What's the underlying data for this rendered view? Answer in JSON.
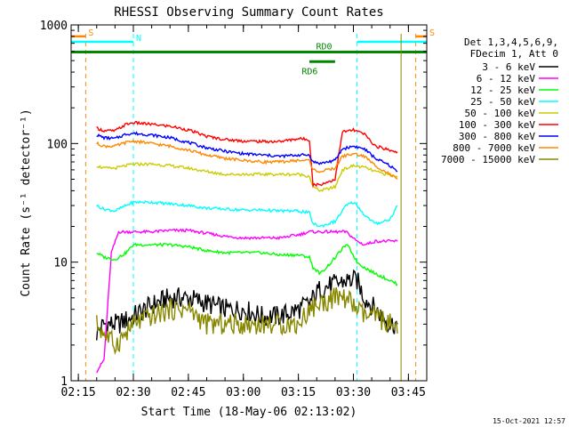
{
  "chart_data": {
    "type": "line",
    "title": "RHESSI Observing Summary Count Rates",
    "xlabel": "Start Time (18-May-06 02:13:02)",
    "ylabel": "Count Rate (s⁻¹ detector⁻¹)",
    "yscale": "log",
    "xlim": [
      "02:13:02",
      "03:50:00"
    ],
    "ylim": [
      1,
      1000
    ],
    "x_ticks": [
      "02:15",
      "02:30",
      "02:45",
      "03:00",
      "03:15",
      "03:30",
      "03:45"
    ],
    "y_ticks": [
      "1",
      "10",
      "100",
      "1000"
    ],
    "footer": "15-Oct-2021 12:57",
    "legend_header": [
      "Det 1,3,4,5,6,9,",
      "FDecim 1, Att 0"
    ],
    "legend_position": "right",
    "series": [
      {
        "name": "3 - 6 keV",
        "color": "#000000",
        "points": [
          [
            "02:20",
            2.5
          ],
          [
            "02:22",
            3
          ],
          [
            "02:26",
            3
          ],
          [
            "02:30",
            3.5
          ],
          [
            "02:36",
            4.5
          ],
          [
            "02:40",
            5
          ],
          [
            "02:45",
            5
          ],
          [
            "02:50",
            4.5
          ],
          [
            "02:55",
            4
          ],
          [
            "03:00",
            4
          ],
          [
            "03:05",
            3.5
          ],
          [
            "03:10",
            3.5
          ],
          [
            "03:15",
            4
          ],
          [
            "03:18",
            4.5
          ],
          [
            "03:21",
            6
          ],
          [
            "03:25",
            6.5
          ],
          [
            "03:28",
            7
          ],
          [
            "03:31",
            7
          ],
          [
            "03:33",
            5
          ],
          [
            "03:36",
            4
          ],
          [
            "03:40",
            3
          ],
          [
            "03:42",
            3
          ]
        ]
      },
      {
        "name": "6 - 12 keV",
        "color": "#ff00ff",
        "points": [
          [
            "02:20",
            1.2
          ],
          [
            "02:22",
            1.5
          ],
          [
            "02:24",
            12
          ],
          [
            "02:26",
            18
          ],
          [
            "02:30",
            18
          ],
          [
            "02:35",
            18
          ],
          [
            "02:40",
            18.5
          ],
          [
            "02:45",
            18.5
          ],
          [
            "02:50",
            17.5
          ],
          [
            "02:55",
            16.5
          ],
          [
            "03:00",
            16
          ],
          [
            "03:05",
            16
          ],
          [
            "03:10",
            16
          ],
          [
            "03:15",
            17
          ],
          [
            "03:18",
            18
          ],
          [
            "03:21",
            18
          ],
          [
            "03:25",
            18
          ],
          [
            "03:28",
            18
          ],
          [
            "03:31",
            15
          ],
          [
            "03:33",
            14
          ],
          [
            "03:36",
            15
          ],
          [
            "03:40",
            15
          ],
          [
            "03:42",
            15
          ]
        ]
      },
      {
        "name": "12 - 25 keV",
        "color": "#00ff00",
        "points": [
          [
            "02:20",
            12
          ],
          [
            "02:22",
            11
          ],
          [
            "02:25",
            10.5
          ],
          [
            "02:28",
            12
          ],
          [
            "02:30",
            14
          ],
          [
            "02:35",
            14
          ],
          [
            "02:40",
            14
          ],
          [
            "02:45",
            13.5
          ],
          [
            "02:50",
            12.5
          ],
          [
            "02:55",
            12
          ],
          [
            "03:00",
            12
          ],
          [
            "03:05",
            12
          ],
          [
            "03:10",
            11.5
          ],
          [
            "03:15",
            11.5
          ],
          [
            "03:18",
            11
          ],
          [
            "03:19",
            9
          ],
          [
            "03:21",
            8
          ],
          [
            "03:24",
            10
          ],
          [
            "03:27",
            13
          ],
          [
            "03:28",
            14
          ],
          [
            "03:29",
            13
          ],
          [
            "03:31",
            10
          ],
          [
            "03:33",
            9
          ],
          [
            "03:36",
            8
          ],
          [
            "03:40",
            7
          ],
          [
            "03:42",
            6.5
          ]
        ]
      },
      {
        "name": "25 - 50 keV",
        "color": "#00ffff",
        "points": [
          [
            "02:20",
            30
          ],
          [
            "02:22",
            28
          ],
          [
            "02:25",
            27
          ],
          [
            "02:28",
            30
          ],
          [
            "02:30",
            32
          ],
          [
            "02:35",
            32
          ],
          [
            "02:40",
            31
          ],
          [
            "02:45",
            30
          ],
          [
            "02:50",
            28.5
          ],
          [
            "02:55",
            28
          ],
          [
            "03:00",
            27.5
          ],
          [
            "03:05",
            27.5
          ],
          [
            "03:10",
            27
          ],
          [
            "03:15",
            27
          ],
          [
            "03:18",
            26
          ],
          [
            "03:19",
            21
          ],
          [
            "03:21",
            20
          ],
          [
            "03:25",
            22
          ],
          [
            "03:28",
            30
          ],
          [
            "03:30",
            32
          ],
          [
            "03:31",
            30
          ],
          [
            "03:33",
            25
          ],
          [
            "03:36",
            21
          ],
          [
            "03:40",
            23
          ],
          [
            "03:42",
            30
          ]
        ]
      },
      {
        "name": "50 - 100 keV",
        "color": "#cccc00",
        "points": [
          [
            "02:20",
            65
          ],
          [
            "02:22",
            62
          ],
          [
            "02:25",
            62
          ],
          [
            "02:28",
            65
          ],
          [
            "02:30",
            67
          ],
          [
            "02:35",
            67
          ],
          [
            "02:40",
            65
          ],
          [
            "02:45",
            62
          ],
          [
            "02:50",
            58
          ],
          [
            "02:55",
            55
          ],
          [
            "03:00",
            55
          ],
          [
            "03:05",
            55
          ],
          [
            "03:10",
            55
          ],
          [
            "03:15",
            55
          ],
          [
            "03:18",
            53
          ],
          [
            "03:19",
            43
          ],
          [
            "03:21",
            40
          ],
          [
            "03:25",
            43
          ],
          [
            "03:27",
            60
          ],
          [
            "03:30",
            65
          ],
          [
            "03:33",
            63
          ],
          [
            "03:36",
            58
          ],
          [
            "03:40",
            54
          ],
          [
            "03:42",
            52
          ]
        ]
      },
      {
        "name": "100 - 300 keV",
        "color": "#ff0000",
        "points": [
          [
            "02:20",
            135
          ],
          [
            "02:22",
            128
          ],
          [
            "02:25",
            128
          ],
          [
            "02:28",
            145
          ],
          [
            "02:30",
            150
          ],
          [
            "02:35",
            145
          ],
          [
            "02:40",
            140
          ],
          [
            "02:45",
            130
          ],
          [
            "02:50",
            115
          ],
          [
            "02:55",
            108
          ],
          [
            "03:00",
            105
          ],
          [
            "03:05",
            104
          ],
          [
            "03:10",
            104
          ],
          [
            "03:15",
            110
          ],
          [
            "03:18",
            108
          ],
          [
            "03:19",
            45
          ],
          [
            "03:21",
            45
          ],
          [
            "03:25",
            50
          ],
          [
            "03:27",
            125
          ],
          [
            "03:30",
            130
          ],
          [
            "03:33",
            120
          ],
          [
            "03:36",
            95
          ],
          [
            "03:40",
            88
          ],
          [
            "03:42",
            85
          ]
        ]
      },
      {
        "name": "300 - 800 keV",
        "color": "#0000ff",
        "points": [
          [
            "02:20",
            118
          ],
          [
            "02:22",
            112
          ],
          [
            "02:25",
            110
          ],
          [
            "02:28",
            120
          ],
          [
            "02:30",
            122
          ],
          [
            "02:35",
            118
          ],
          [
            "02:40",
            112
          ],
          [
            "02:45",
            102
          ],
          [
            "02:50",
            92
          ],
          [
            "02:55",
            86
          ],
          [
            "03:00",
            82
          ],
          [
            "03:05",
            80
          ],
          [
            "03:10",
            78
          ],
          [
            "03:15",
            80
          ],
          [
            "03:18",
            80
          ],
          [
            "03:19",
            70
          ],
          [
            "03:21",
            68
          ],
          [
            "03:25",
            72
          ],
          [
            "03:27",
            90
          ],
          [
            "03:30",
            95
          ],
          [
            "03:33",
            90
          ],
          [
            "03:36",
            75
          ],
          [
            "03:40",
            65
          ],
          [
            "03:42",
            58
          ]
        ]
      },
      {
        "name": "800 - 7000 keV",
        "color": "#ff8800",
        "points": [
          [
            "02:20",
            100
          ],
          [
            "02:22",
            95
          ],
          [
            "02:25",
            95
          ],
          [
            "02:28",
            102
          ],
          [
            "02:30",
            105
          ],
          [
            "02:35",
            100
          ],
          [
            "02:40",
            95
          ],
          [
            "02:45",
            88
          ],
          [
            "02:50",
            80
          ],
          [
            "02:55",
            75
          ],
          [
            "03:00",
            72
          ],
          [
            "03:05",
            70
          ],
          [
            "03:10",
            70
          ],
          [
            "03:15",
            72
          ],
          [
            "03:18",
            72
          ],
          [
            "03:19",
            60
          ],
          [
            "03:21",
            58
          ],
          [
            "03:25",
            62
          ],
          [
            "03:27",
            78
          ],
          [
            "03:30",
            82
          ],
          [
            "03:33",
            78
          ],
          [
            "03:36",
            65
          ],
          [
            "03:40",
            55
          ],
          [
            "03:42",
            50
          ]
        ]
      },
      {
        "name": "7000 - 15000 keV",
        "color": "#888800",
        "points": [
          [
            "02:20",
            3
          ],
          [
            "02:22",
            2.5
          ],
          [
            "02:25",
            2
          ],
          [
            "02:28",
            2.5
          ],
          [
            "02:30",
            3
          ],
          [
            "02:35",
            3.5
          ],
          [
            "02:40",
            4
          ],
          [
            "02:45",
            4
          ],
          [
            "02:50",
            3
          ],
          [
            "02:55",
            3
          ],
          [
            "03:00",
            3
          ],
          [
            "03:05",
            3
          ],
          [
            "03:10",
            3
          ],
          [
            "03:15",
            3
          ],
          [
            "03:18",
            4
          ],
          [
            "03:21",
            4.5
          ],
          [
            "03:25",
            5
          ],
          [
            "03:28",
            5
          ],
          [
            "03:31",
            4
          ],
          [
            "03:33",
            3.5
          ],
          [
            "03:36",
            3.5
          ],
          [
            "03:40",
            3
          ],
          [
            "03:42",
            2.5
          ]
        ]
      }
    ],
    "annotations": [
      {
        "label": "S",
        "kind": "saa",
        "color": "#ff8800",
        "interval": [
          "02:13:02",
          "02:17:00"
        ],
        "level": 800,
        "vlines": [
          "02:17:00"
        ]
      },
      {
        "label": "S",
        "kind": "saa",
        "color": "#ff8800",
        "interval": [
          "03:47:00",
          "03:50:00"
        ],
        "level": 800,
        "vlines": [
          "03:47:00"
        ]
      },
      {
        "label": "N",
        "kind": "night",
        "color": "#00ffff",
        "interval": [
          "02:13:02",
          "02:30:00"
        ],
        "level": 720,
        "vlines": [
          "02:30:00"
        ]
      },
      {
        "label": "",
        "kind": "night",
        "color": "#00ffff",
        "interval": [
          "03:31:00",
          "03:50:00"
        ],
        "level": 720,
        "vlines": [
          "03:31:00"
        ]
      },
      {
        "label": "RD0",
        "kind": "decimation",
        "color": "#008800",
        "interval": [
          "02:13:02",
          "03:50:00"
        ],
        "level": 590,
        "vlines": []
      },
      {
        "label": "RD6",
        "kind": "decimation",
        "color": "#008800",
        "interval": [
          "03:18:00",
          "03:25:00"
        ],
        "level": 490,
        "vlines": []
      },
      {
        "label": "",
        "kind": "attenuator",
        "color": "#888800",
        "interval": [],
        "level": null,
        "vlines": [
          "03:43:00"
        ]
      }
    ]
  }
}
